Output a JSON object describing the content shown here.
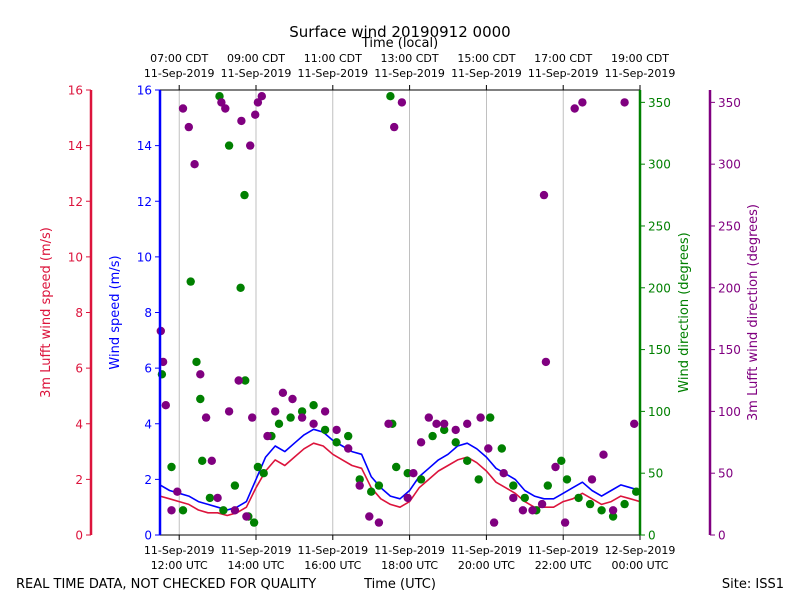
{
  "chart_data": {
    "type": "scatter",
    "title": "Surface wind 20190912 0000",
    "top_axis_label": "Time (local)",
    "xlabel": "Time (UTC)",
    "footer_left": "REAL TIME DATA, NOT CHECKED FOR QUALITY",
    "footer_right": "Site: ISS1",
    "xlim": [
      11.5,
      24.0
    ],
    "x_ticks_utc": [
      {
        "x": 12,
        "line1": "11-Sep-2019",
        "line2": "12:00 UTC"
      },
      {
        "x": 14,
        "line1": "11-Sep-2019",
        "line2": "14:00 UTC"
      },
      {
        "x": 16,
        "line1": "11-Sep-2019",
        "line2": "16:00 UTC"
      },
      {
        "x": 18,
        "line1": "11-Sep-2019",
        "line2": "18:00 UTC"
      },
      {
        "x": 20,
        "line1": "11-Sep-2019",
        "line2": "20:00 UTC"
      },
      {
        "x": 22,
        "line1": "11-Sep-2019",
        "line2": "22:00 UTC"
      },
      {
        "x": 24,
        "line1": "12-Sep-2019",
        "line2": "00:00 UTC"
      }
    ],
    "x_ticks_local": [
      {
        "x": 12,
        "line1": "07:00 CDT",
        "line2": "11-Sep-2019"
      },
      {
        "x": 14,
        "line1": "09:00 CDT",
        "line2": "11-Sep-2019"
      },
      {
        "x": 16,
        "line1": "11:00 CDT",
        "line2": "11-Sep-2019"
      },
      {
        "x": 18,
        "line1": "13:00 CDT",
        "line2": "11-Sep-2019"
      },
      {
        "x": 20,
        "line1": "15:00 CDT",
        "line2": "11-Sep-2019"
      },
      {
        "x": 22,
        "line1": "17:00 CDT",
        "line2": "11-Sep-2019"
      },
      {
        "x": 24,
        "line1": "19:00 CDT",
        "line2": "11-Sep-2019"
      }
    ],
    "axes": [
      {
        "id": "lufft_speed",
        "label": "3m Lufft wind speed (m/s)",
        "color": "#dc143c",
        "ylim": [
          0,
          16
        ],
        "ticks": [
          0,
          2,
          4,
          6,
          8,
          10,
          12,
          14,
          16
        ]
      },
      {
        "id": "speed",
        "label": "Wind speed (m/s)",
        "color": "#0000ff",
        "ylim": [
          0,
          16
        ],
        "ticks": [
          0,
          2,
          4,
          6,
          8,
          10,
          12,
          14,
          16
        ]
      },
      {
        "id": "direction",
        "label": "Wind direction (degrees)",
        "color": "#008000",
        "ylim": [
          0,
          360
        ],
        "ticks": [
          0,
          50,
          100,
          150,
          200,
          250,
          300,
          350
        ]
      },
      {
        "id": "lufft_direction",
        "label": "3m Lufft wind direction (degrees)",
        "color": "#800080",
        "ylim": [
          0,
          360
        ],
        "ticks": [
          0,
          50,
          100,
          150,
          200,
          250,
          300,
          350
        ]
      }
    ],
    "series": [
      {
        "name": "Wind speed (m/s)",
        "type": "line",
        "axis": "speed",
        "color": "#0000ff",
        "x": [
          11.5,
          11.75,
          12,
          12.25,
          12.5,
          12.75,
          13,
          13.25,
          13.5,
          13.75,
          14,
          14.25,
          14.5,
          14.75,
          15,
          15.25,
          15.5,
          15.75,
          16,
          16.25,
          16.5,
          16.75,
          17,
          17.25,
          17.5,
          17.75,
          18,
          18.25,
          18.5,
          18.75,
          19,
          19.25,
          19.5,
          19.75,
          20,
          20.25,
          20.5,
          20.75,
          21,
          21.25,
          21.5,
          21.75,
          22,
          22.25,
          22.5,
          22.75,
          23,
          23.25,
          23.5,
          23.75,
          24
        ],
        "values": [
          1.8,
          1.6,
          1.5,
          1.4,
          1.2,
          1.1,
          1.0,
          0.9,
          1.0,
          1.2,
          2.0,
          2.8,
          3.2,
          3.0,
          3.3,
          3.6,
          3.8,
          3.7,
          3.4,
          3.2,
          3.0,
          2.9,
          2.1,
          1.7,
          1.4,
          1.3,
          1.6,
          2.1,
          2.4,
          2.7,
          2.9,
          3.2,
          3.3,
          3.1,
          2.8,
          2.4,
          2.2,
          2.0,
          1.6,
          1.4,
          1.3,
          1.3,
          1.5,
          1.7,
          1.9,
          1.6,
          1.4,
          1.6,
          1.8,
          1.7,
          1.6
        ]
      },
      {
        "name": "3m Lufft wind speed (m/s)",
        "type": "line",
        "axis": "lufft_speed",
        "color": "#dc143c",
        "x": [
          11.5,
          11.75,
          12,
          12.25,
          12.5,
          12.75,
          13,
          13.25,
          13.5,
          13.75,
          14,
          14.25,
          14.5,
          14.75,
          15,
          15.25,
          15.5,
          15.75,
          16,
          16.25,
          16.5,
          16.75,
          17,
          17.25,
          17.5,
          17.75,
          18,
          18.25,
          18.5,
          18.75,
          19,
          19.25,
          19.5,
          19.75,
          20,
          20.25,
          20.5,
          20.75,
          21,
          21.25,
          21.5,
          21.75,
          22,
          22.25,
          22.5,
          22.75,
          23,
          23.25,
          23.5,
          23.75,
          24
        ],
        "values": [
          1.4,
          1.3,
          1.2,
          1.1,
          0.9,
          0.8,
          0.8,
          0.7,
          0.8,
          1.0,
          1.7,
          2.3,
          2.7,
          2.5,
          2.8,
          3.1,
          3.3,
          3.2,
          2.9,
          2.7,
          2.5,
          2.4,
          1.7,
          1.3,
          1.1,
          1.0,
          1.2,
          1.7,
          2.0,
          2.3,
          2.5,
          2.7,
          2.8,
          2.6,
          2.3,
          1.9,
          1.7,
          1.5,
          1.2,
          1.0,
          1.0,
          1.0,
          1.2,
          1.3,
          1.5,
          1.3,
          1.1,
          1.2,
          1.4,
          1.3,
          1.2
        ]
      },
      {
        "name": "Wind direction (degrees)",
        "type": "scatter",
        "axis": "direction",
        "color": "#008000",
        "x": [
          11.55,
          11.8,
          12.1,
          12.3,
          12.45,
          12.55,
          12.6,
          12.8,
          13.05,
          13.15,
          13.3,
          13.45,
          13.6,
          13.7,
          13.72,
          13.8,
          13.95,
          14.05,
          14.2,
          14.4,
          14.6,
          14.9,
          15.2,
          15.5,
          15.8,
          16.1,
          16.4,
          16.7,
          17.0,
          17.2,
          17.5,
          17.55,
          17.65,
          17.95,
          18.3,
          18.6,
          18.9,
          19.2,
          19.5,
          19.8,
          20.1,
          20.4,
          20.7,
          21.0,
          21.3,
          21.6,
          21.95,
          22.1,
          22.4,
          22.7,
          23.0,
          23.3,
          23.6,
          23.9
        ],
        "values": [
          130,
          55,
          20,
          205,
          140,
          110,
          60,
          30,
          355,
          20,
          315,
          40,
          200,
          275,
          125,
          15,
          10,
          55,
          50,
          80,
          90,
          95,
          100,
          105,
          85,
          75,
          80,
          45,
          35,
          40,
          355,
          90,
          55,
          50,
          45,
          80,
          85,
          75,
          60,
          45,
          95,
          70,
          40,
          30,
          20,
          40,
          60,
          45,
          30,
          25,
          20,
          15,
          25,
          35
        ]
      },
      {
        "name": "3m Lufft wind direction (degrees)",
        "type": "scatter",
        "axis": "lufft_direction",
        "color": "#800080",
        "x": [
          11.52,
          11.58,
          11.65,
          11.8,
          11.95,
          12.1,
          12.25,
          12.4,
          12.55,
          12.7,
          12.85,
          13.0,
          13.1,
          13.2,
          13.3,
          13.45,
          13.55,
          13.62,
          13.75,
          13.85,
          13.9,
          13.98,
          14.05,
          14.15,
          14.3,
          14.5,
          14.7,
          14.95,
          15.2,
          15.5,
          15.8,
          16.1,
          16.4,
          16.7,
          16.95,
          17.2,
          17.45,
          17.6,
          17.8,
          17.95,
          18.1,
          18.3,
          18.5,
          18.7,
          18.9,
          19.2,
          19.5,
          19.85,
          20.05,
          20.2,
          20.45,
          20.7,
          20.95,
          21.2,
          21.45,
          21.5,
          21.55,
          21.8,
          22.05,
          22.3,
          22.5,
          22.75,
          23.05,
          23.3,
          23.6,
          23.85
        ],
        "values": [
          165,
          140,
          105,
          20,
          35,
          345,
          330,
          300,
          130,
          95,
          60,
          30,
          350,
          345,
          100,
          20,
          125,
          335,
          15,
          315,
          95,
          340,
          350,
          355,
          80,
          100,
          115,
          110,
          95,
          90,
          100,
          85,
          70,
          40,
          15,
          10,
          90,
          330,
          350,
          30,
          50,
          75,
          95,
          90,
          90,
          85,
          90,
          95,
          70,
          10,
          50,
          30,
          20,
          20,
          25,
          275,
          140,
          55,
          10,
          345,
          350,
          45,
          65,
          20,
          350,
          90
        ]
      }
    ]
  }
}
